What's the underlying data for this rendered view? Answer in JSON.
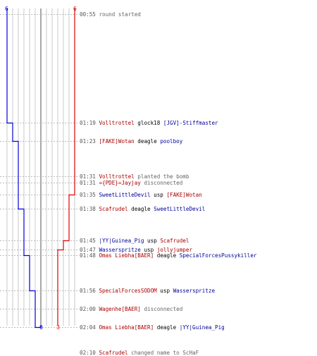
{
  "colors": {
    "ct_line": "#0000dd",
    "t_line": "#dd0000",
    "grid": "#c8c8c8",
    "grid_center": "#7a7a7a",
    "dash": "#bbbbbb",
    "red_name": "#aa0000",
    "blue_name": "#000099"
  },
  "axis": {
    "top_left": "6",
    "top_right": "6",
    "bottom_ct": "0",
    "bottom_t": "3"
  },
  "counts": {
    "ct_start": 6,
    "t_start": 6,
    "ct_end": 0,
    "t_end": 3
  },
  "events": [
    {
      "time": "00:55",
      "parts": [
        {
          "text": "round started",
          "color": "grey"
        }
      ],
      "ct_alive": 6,
      "t_alive": 6
    },
    {
      "time": "01:19",
      "parts": [
        {
          "text": "Volltrottel",
          "color": "red"
        },
        {
          "text": " glock18 ",
          "color": "black"
        },
        {
          "text": "[JGV]-Stiffmaster",
          "color": "blue"
        }
      ],
      "ct_alive": 5,
      "t_alive": 6
    },
    {
      "time": "01:23",
      "parts": [
        {
          "text": "[FAKE]Wotan",
          "color": "red"
        },
        {
          "text": " deagle ",
          "color": "black"
        },
        {
          "text": "poolboy",
          "color": "blue"
        }
      ],
      "ct_alive": 4,
      "t_alive": 6
    },
    {
      "time": "01:31",
      "parts": [
        {
          "text": "Volltrottel",
          "color": "red"
        },
        {
          "text": " planted the bomb",
          "color": "grey"
        }
      ],
      "ct_alive": 4,
      "t_alive": 6
    },
    {
      "time": "01:31",
      "parts": [
        {
          "text": "={PDE}=Jayjay",
          "color": "red"
        },
        {
          "text": " disconnected",
          "color": "grey"
        }
      ],
      "ct_alive": 4,
      "t_alive": 6
    },
    {
      "time": "01:35",
      "parts": [
        {
          "text": "SweetLittleDevil",
          "color": "blue"
        },
        {
          "text": " usp ",
          "color": "black"
        },
        {
          "text": "[FAKE]Wotan",
          "color": "red"
        }
      ],
      "ct_alive": 4,
      "t_alive": 5
    },
    {
      "time": "01:38",
      "parts": [
        {
          "text": "Scafrudel",
          "color": "red"
        },
        {
          "text": " deagle ",
          "color": "black"
        },
        {
          "text": "SweetLittleDevil",
          "color": "blue"
        }
      ],
      "ct_alive": 3,
      "t_alive": 5
    },
    {
      "time": "01:45",
      "parts": [
        {
          "text": "|YY|Guinea_Pig",
          "color": "blue"
        },
        {
          "text": " usp ",
          "color": "black"
        },
        {
          "text": "Scafrudel",
          "color": "red"
        }
      ],
      "ct_alive": 3,
      "t_alive": 4
    },
    {
      "time": "01:47",
      "parts": [
        {
          "text": "Wasserspritze",
          "color": "blue"
        },
        {
          "text": " usp ",
          "color": "black"
        },
        {
          "text": "jollyjumper",
          "color": "red"
        }
      ],
      "ct_alive": 3,
      "t_alive": 3
    },
    {
      "time": "01:48",
      "parts": [
        {
          "text": "Omas Liebha[BAER]",
          "color": "red"
        },
        {
          "text": " deagle ",
          "color": "black"
        },
        {
          "text": "SpecialForcesPussykiller",
          "color": "blue"
        }
      ],
      "ct_alive": 2,
      "t_alive": 3
    },
    {
      "time": "01:56",
      "parts": [
        {
          "text": "SpecialForcesSODOM",
          "color": "red"
        },
        {
          "text": " usp ",
          "color": "black"
        },
        {
          "text": "Wasserspritze",
          "color": "blue"
        }
      ],
      "ct_alive": 1,
      "t_alive": 3
    },
    {
      "time": "02:00",
      "parts": [
        {
          "text": "Wagenhe[BAER]",
          "color": "red"
        },
        {
          "text": " disconnected",
          "color": "grey"
        }
      ],
      "ct_alive": 1,
      "t_alive": 3
    },
    {
      "time": "02:04",
      "parts": [
        {
          "text": "Omas Liebha[BAER]",
          "color": "red"
        },
        {
          "text": " deagle ",
          "color": "black"
        },
        {
          "text": "|YY|Guinea_Pig",
          "color": "blue"
        }
      ],
      "ct_alive": 0,
      "t_alive": 3
    },
    {
      "time": "02:10",
      "parts": [
        {
          "text": "Scafrudel",
          "color": "red"
        },
        {
          "text": " changed name to ScHaF",
          "color": "grey"
        }
      ],
      "ct_alive": null,
      "t_alive": null
    }
  ]
}
